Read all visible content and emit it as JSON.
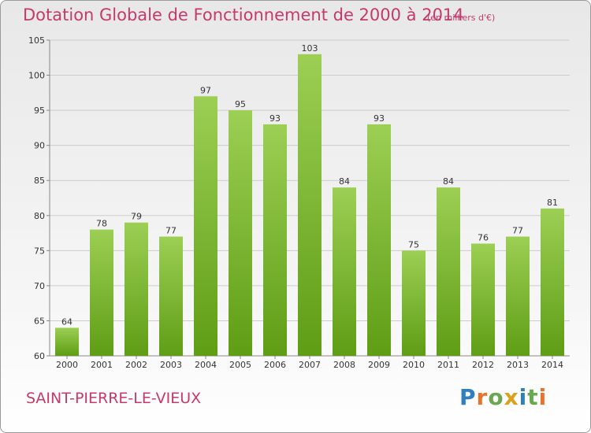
{
  "chart_data": {
    "type": "bar",
    "title": "Dotation Globale de Fonctionnement de 2000 à 2014",
    "subtitle": "(en milliers d'€)",
    "categories": [
      "2000",
      "2001",
      "2002",
      "2003",
      "2004",
      "2005",
      "2006",
      "2007",
      "2008",
      "2009",
      "2010",
      "2011",
      "2012",
      "2013",
      "2014"
    ],
    "values": [
      64,
      78,
      79,
      77,
      97,
      95,
      93,
      103,
      84,
      93,
      75,
      84,
      76,
      77,
      81
    ],
    "ylim": [
      60,
      105
    ],
    "yticks": [
      60,
      65,
      70,
      75,
      80,
      85,
      90,
      95,
      100,
      105
    ],
    "grid": true,
    "xlabel": "",
    "ylabel": "",
    "colors": {
      "bar_top": "#9ccf54",
      "bar_bottom": "#5f9d15",
      "grid": "#cccccc",
      "title": "#c43a6a"
    }
  },
  "footer": {
    "commune": "SAINT-PIERRE-LE-VIEUX",
    "logo": "Proxiti",
    "logo_colors": [
      "#2f7fc1",
      "#e8732a",
      "#6aa84f",
      "#d9a21b",
      "#2f7fc1",
      "#6aa84f",
      "#e8732a"
    ]
  }
}
